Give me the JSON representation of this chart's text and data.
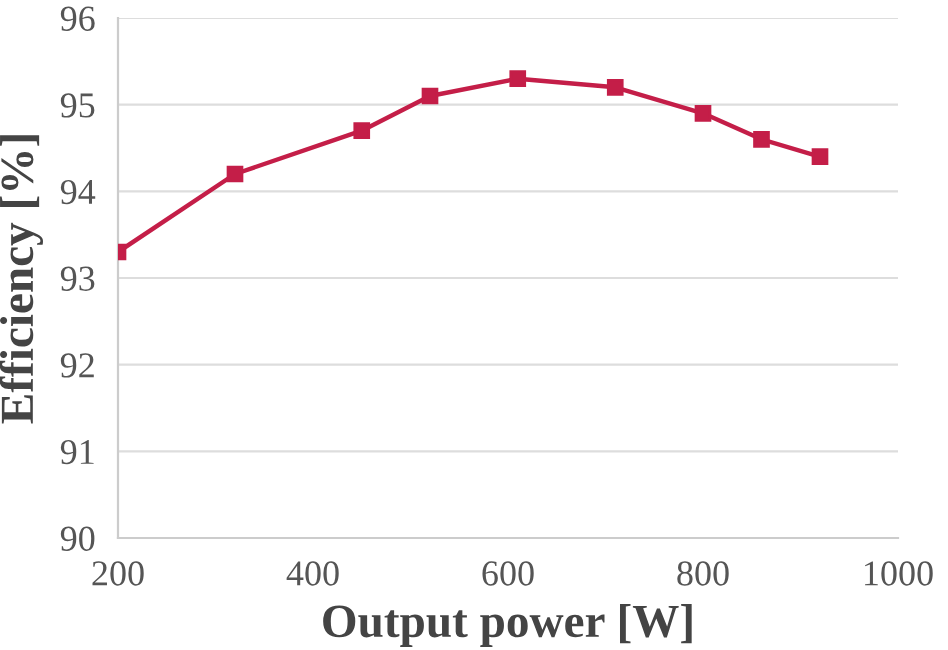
{
  "chart_data": {
    "type": "line",
    "xlabel": "Output power [W]",
    "ylabel": "Efficiency [%]",
    "x": [
      200,
      320,
      450,
      520,
      610,
      710,
      800,
      860,
      920
    ],
    "series": [
      {
        "color": "#c41e48",
        "values": [
          93.3,
          94.2,
          94.7,
          95.1,
          95.3,
          95.2,
          94.9,
          94.6,
          94.4
        ]
      }
    ],
    "xlim": [
      200,
      1000
    ],
    "xticks": [
      200,
      400,
      600,
      800,
      1000
    ],
    "ylim": [
      90,
      96
    ],
    "yticks": [
      90,
      91,
      92,
      93,
      94,
      95,
      96
    ],
    "grid": "y",
    "marker": "square",
    "line_style": "solid"
  }
}
